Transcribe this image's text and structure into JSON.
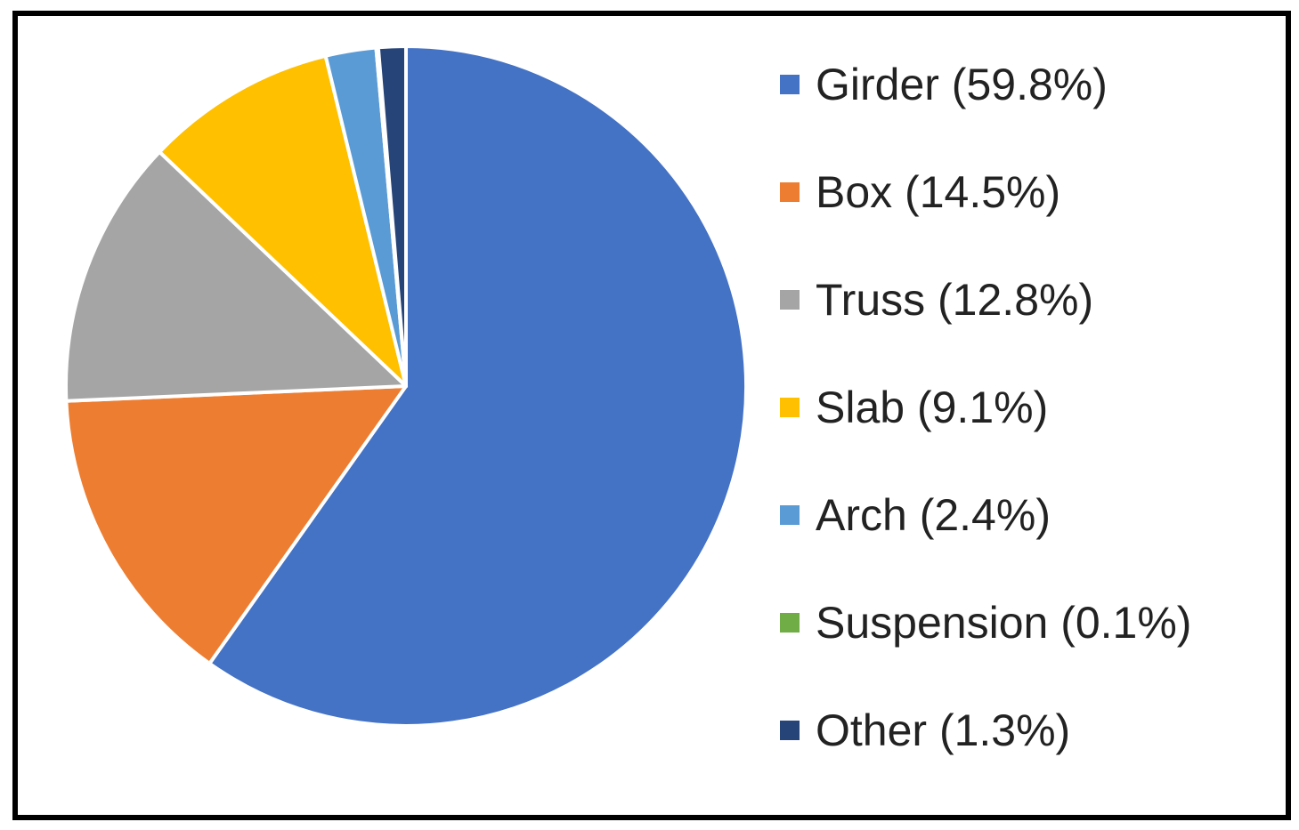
{
  "chart_data": {
    "type": "pie",
    "title": "",
    "legend_position": "right",
    "start_angle_deg": 0,
    "direction": "clockwise",
    "slices": [
      {
        "label": "Girder (59.8%)",
        "value": 59.8,
        "color": "#4472C4"
      },
      {
        "label": "Box (14.5%)",
        "value": 14.5,
        "color": "#ED7D31"
      },
      {
        "label": "Truss (12.8%)",
        "value": 12.8,
        "color": "#A5A5A5"
      },
      {
        "label": "Slab (9.1%)",
        "value": 9.1,
        "color": "#FFC000"
      },
      {
        "label": "Arch (2.4%)",
        "value": 2.4,
        "color": "#5B9BD5"
      },
      {
        "label": "Suspension (0.1%)",
        "value": 0.1,
        "color": "#70AD47"
      },
      {
        "label": "Other (1.3%)",
        "value": 1.3,
        "color": "#264478"
      }
    ]
  }
}
